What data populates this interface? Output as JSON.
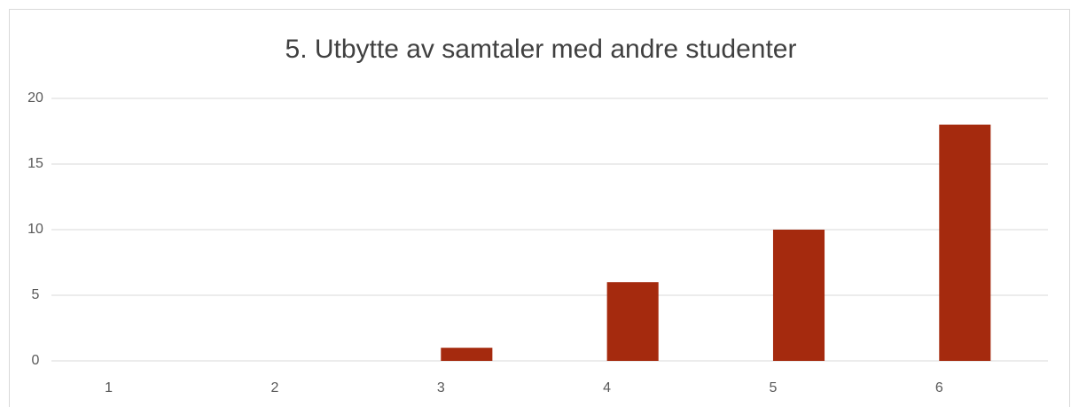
{
  "chart_data": {
    "type": "bar",
    "title": "5. Utbytte av samtaler med andre studenter",
    "categories": [
      "1",
      "2",
      "3",
      "4",
      "5",
      "6"
    ],
    "values": [
      0,
      0,
      1,
      6,
      10,
      18
    ],
    "color": "#a52a0e",
    "ylim": [
      0,
      20
    ],
    "yticks": [
      0,
      5,
      10,
      15,
      20
    ],
    "grid": true
  }
}
